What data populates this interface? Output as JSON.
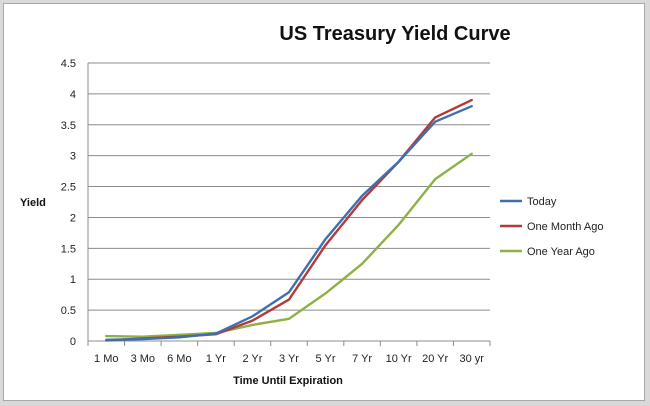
{
  "chart_data": {
    "type": "line",
    "title": "US Treasury Yield Curve",
    "xlabel": "Time Until Expiration",
    "ylabel": "Yield",
    "categories": [
      "1 Mo",
      "3 Mo",
      "6 Mo",
      "1 Yr",
      "2 Yr",
      "3 Yr",
      "5 Yr",
      "7 Yr",
      "10 Yr",
      "20 Yr",
      "30 yr"
    ],
    "ylim": [
      0,
      4.5
    ],
    "yticks": [
      "0",
      "0.5",
      "1",
      "1.5",
      "2",
      "2.5",
      "3",
      "3.5",
      "4",
      "4.5"
    ],
    "grid": true,
    "legend_position": "right",
    "series": [
      {
        "name": "Today",
        "color": "#3e6fb0",
        "values": [
          0.02,
          0.03,
          0.06,
          0.12,
          0.4,
          0.79,
          1.65,
          2.35,
          2.9,
          3.55,
          3.8
        ]
      },
      {
        "name": "One Month Ago",
        "color": "#b23b37",
        "values": [
          0.01,
          0.04,
          0.07,
          0.11,
          0.33,
          0.67,
          1.55,
          2.28,
          2.9,
          3.62,
          3.9
        ]
      },
      {
        "name": "One Year Ago",
        "color": "#8fb043",
        "values": [
          0.08,
          0.07,
          0.1,
          0.13,
          0.26,
          0.36,
          0.77,
          1.25,
          1.88,
          2.62,
          3.03
        ]
      }
    ]
  }
}
